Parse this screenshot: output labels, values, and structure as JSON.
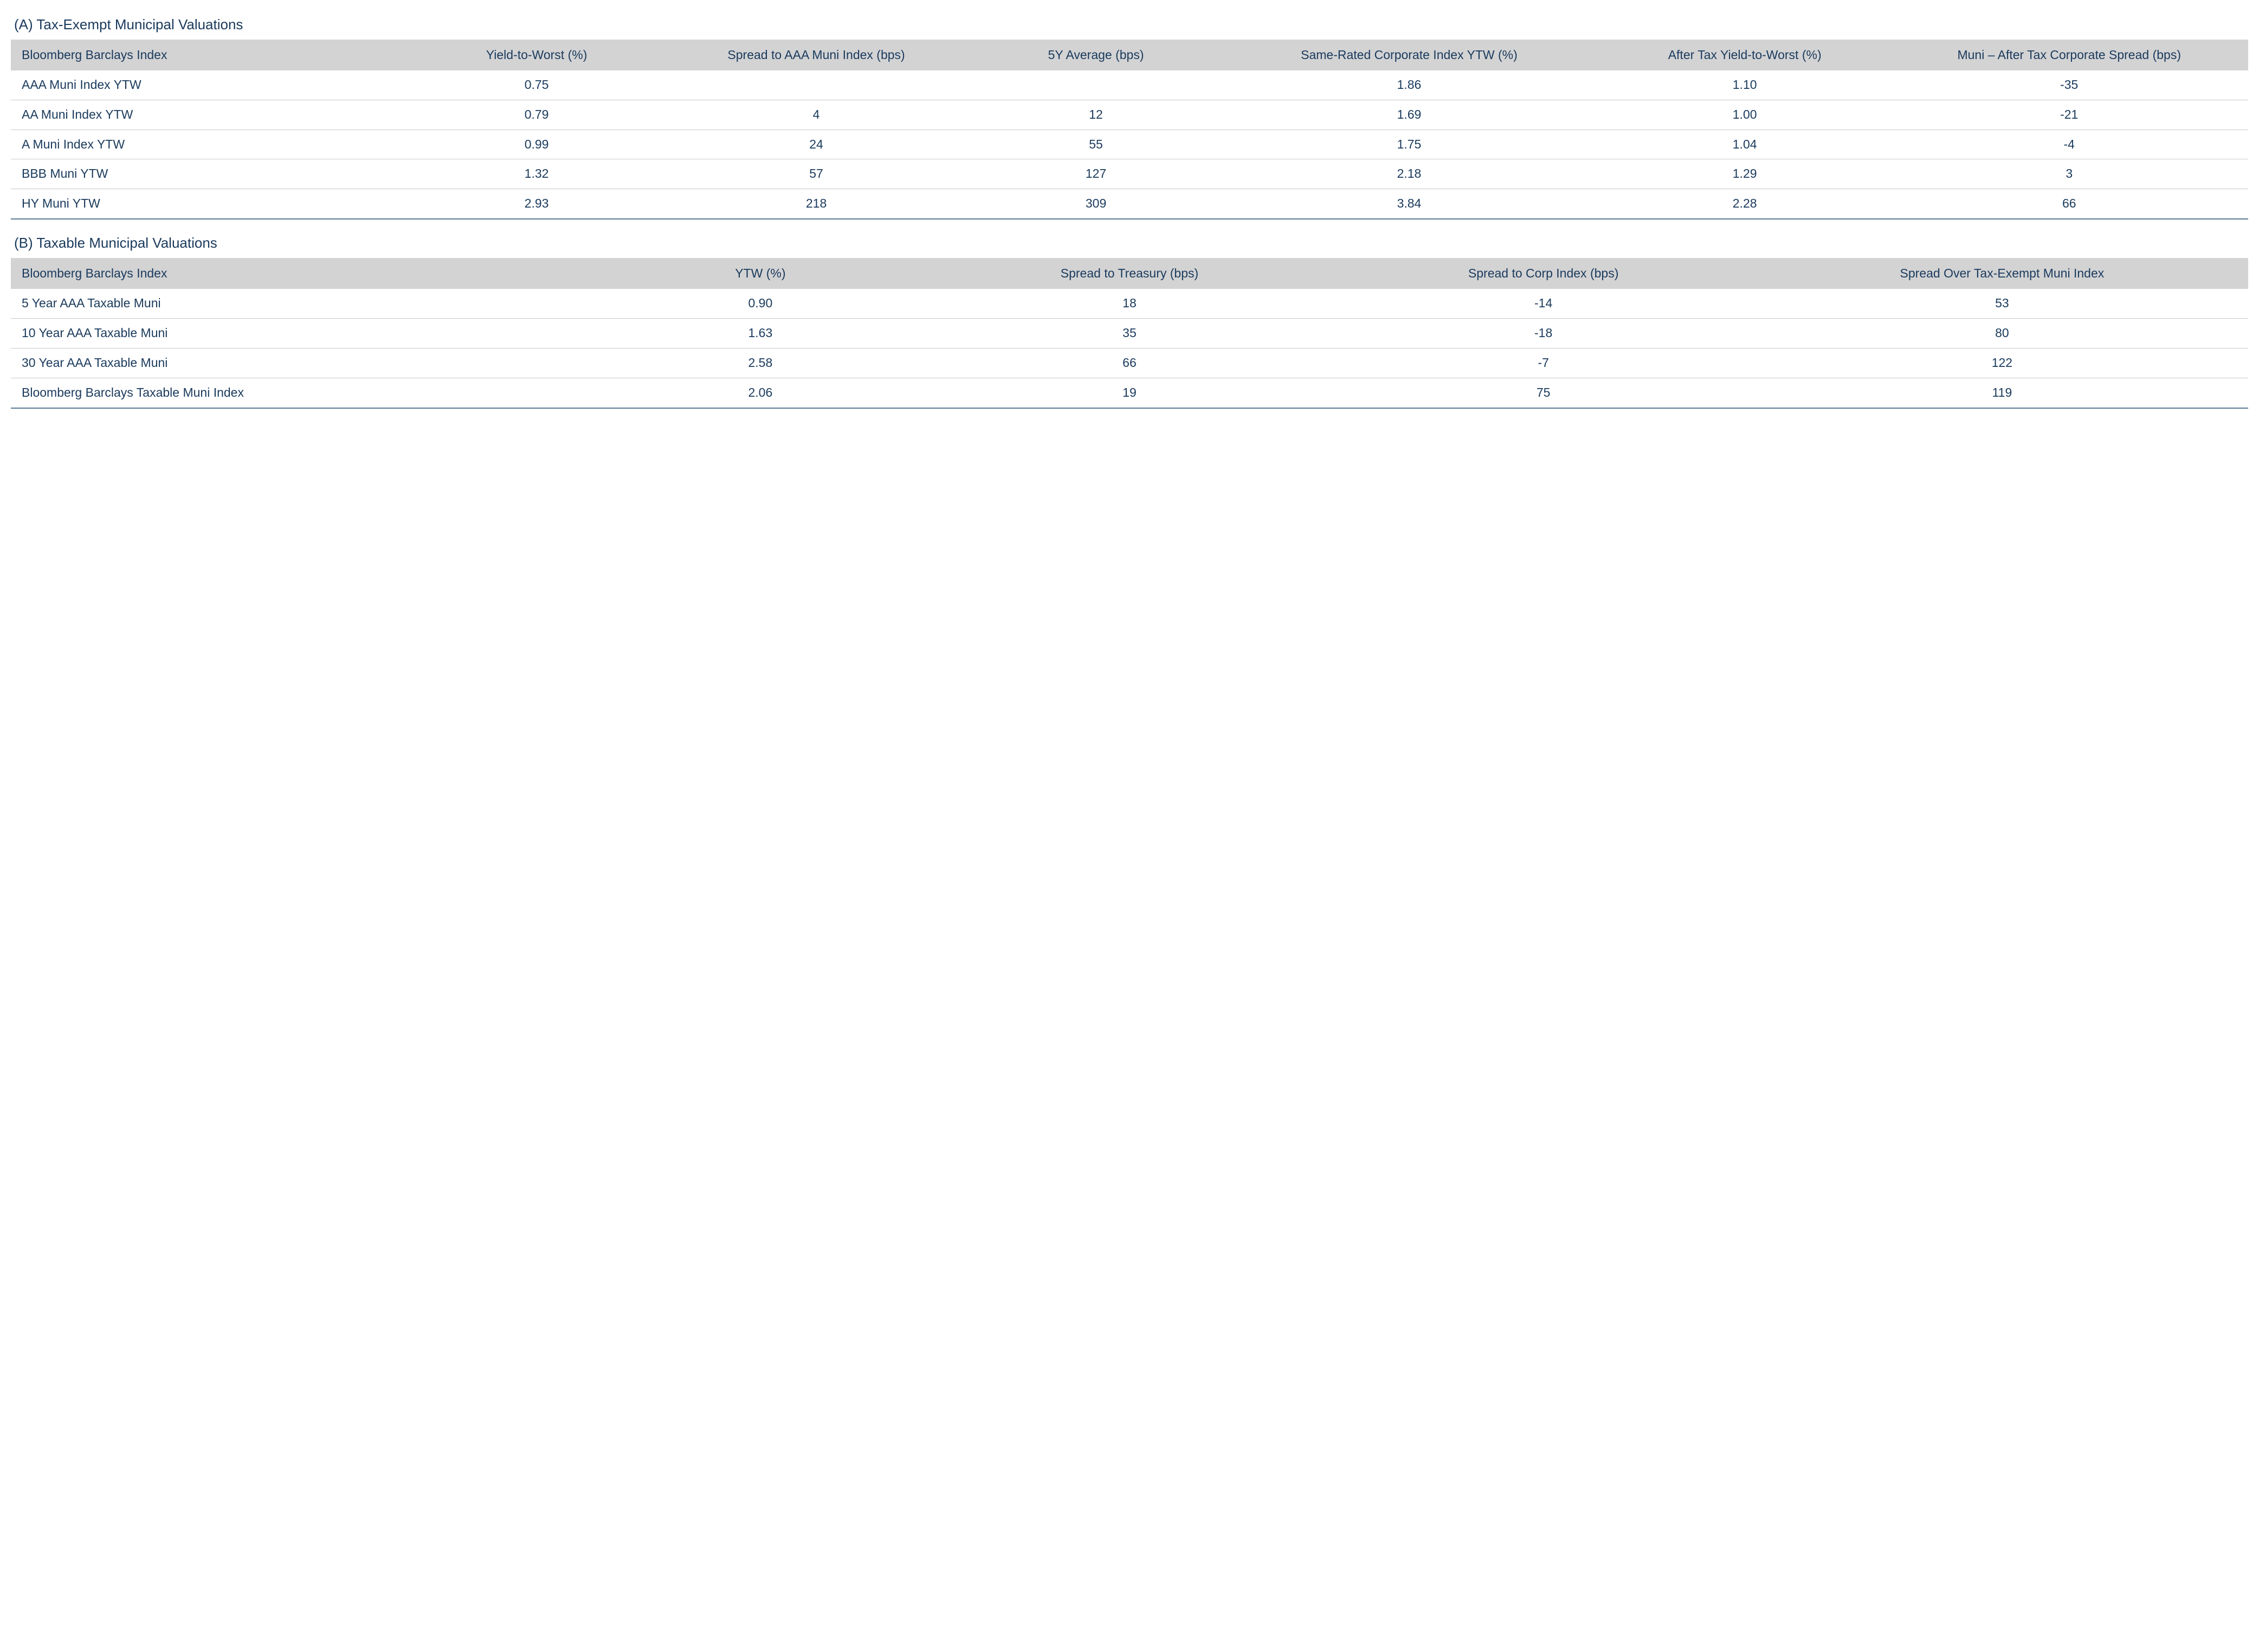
{
  "colors": {
    "text": "#1a3a5c",
    "header_bg": "#d3d3d4",
    "row_divider": "#c9c9c9",
    "bottom_rule": "#5a7a96",
    "background": "#ffffff"
  },
  "typography": {
    "font_family": "Segoe UI / Helvetica Neue",
    "title_fontsize_pt": 20,
    "header_fontsize_pt": 17,
    "cell_fontsize_pt": 17,
    "font_weight": "400"
  },
  "tableA": {
    "title": "(A) Tax-Exempt Municipal Valuations",
    "headers": [
      "Bloomberg Barclays Index",
      "Yield-to-Worst (%)",
      "Spread to AAA Muni Index (bps)",
      "5Y Average (bps)",
      "Same-Rated Corporate Index YTW (%)",
      "After Tax Yield-to-Worst (%)",
      "Muni – After Tax Corporate Spread (bps)"
    ],
    "rows": [
      {
        "c0": "AAA Muni Index YTW",
        "c1": "0.75",
        "c2": "",
        "c3": "",
        "c4": "1.86",
        "c5": "1.10",
        "c6": "-35"
      },
      {
        "c0": "AA Muni Index YTW",
        "c1": "0.79",
        "c2": "4",
        "c3": "12",
        "c4": "1.69",
        "c5": "1.00",
        "c6": "-21"
      },
      {
        "c0": "A Muni Index YTW",
        "c1": "0.99",
        "c2": "24",
        "c3": "55",
        "c4": "1.75",
        "c5": "1.04",
        "c6": "-4"
      },
      {
        "c0": "BBB Muni YTW",
        "c1": "1.32",
        "c2": "57",
        "c3": "127",
        "c4": "2.18",
        "c5": "1.29",
        "c6": "3"
      },
      {
        "c0": "HY Muni YTW",
        "c1": "2.93",
        "c2": "218",
        "c3": "309",
        "c4": "3.84",
        "c5": "2.28",
        "c6": "66"
      }
    ]
  },
  "tableB": {
    "title": "(B) Taxable Municipal Valuations",
    "headers": [
      "Bloomberg Barclays Index",
      "YTW (%)",
      "Spread to Treasury (bps)",
      "Spread to Corp Index (bps)",
      "Spread Over Tax-Exempt Muni Index"
    ],
    "rows": [
      {
        "c0": "5 Year AAA Taxable Muni",
        "c1": "0.90",
        "c2": "18",
        "c3": "-14",
        "c4": "53"
      },
      {
        "c0": "10 Year AAA Taxable Muni",
        "c1": "1.63",
        "c2": "35",
        "c3": "-18",
        "c4": "80"
      },
      {
        "c0": "30 Year AAA Taxable Muni",
        "c1": "2.58",
        "c2": "66",
        "c3": "-7",
        "c4": "122"
      },
      {
        "c0": "Bloomberg Barclays Taxable Muni Index",
        "c1": "2.06",
        "c2": "19",
        "c3": "75",
        "c4": "119"
      }
    ]
  }
}
